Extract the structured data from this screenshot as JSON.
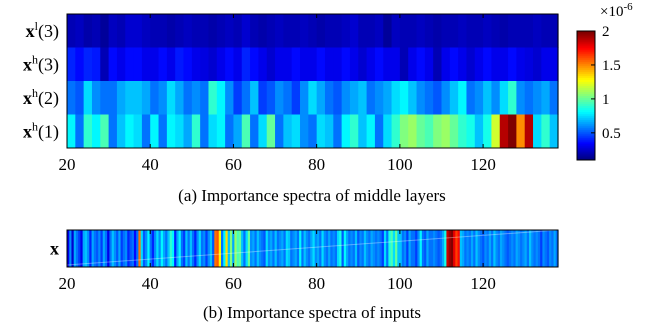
{
  "chart_data": [
    {
      "type": "heatmap",
      "caption": "(a)  Importance spectra of middle layers",
      "rows": [
        {
          "bold": "x",
          "sup": "l",
          "idx": "(3)"
        },
        {
          "bold": "x",
          "sup": "h",
          "idx": "(3)"
        },
        {
          "bold": "x",
          "sup": "h",
          "idx": "(2)"
        },
        {
          "bold": "x",
          "sup": "h",
          "idx": "(1)"
        }
      ],
      "xlim": [
        20,
        138
      ],
      "x_ticks": [
        "20",
        "40",
        "60",
        "80",
        "100",
        "120"
      ],
      "colorbar": {
        "range": [
          0.1,
          2
        ],
        "ticks": [
          "0.5",
          "1",
          "1.5",
          "2"
        ],
        "exponent_label": "×10",
        "exponent_sup": "-6",
        "colormap": "jet"
      },
      "values": [
        [
          0.2,
          0.22,
          0.18,
          0.2,
          0.15,
          0.22,
          0.2,
          0.25,
          0.25,
          0.22,
          0.2,
          0.2,
          0.18,
          0.2,
          0.22,
          0.2,
          0.2,
          0.18,
          0.2,
          0.22,
          0.2,
          0.25,
          0.2,
          0.18,
          0.2,
          0.22,
          0.2,
          0.2,
          0.22,
          0.2,
          0.18,
          0.2,
          0.2,
          0.22,
          0.25,
          0.2,
          0.2,
          0.22,
          0.15,
          0.22,
          0.2,
          0.2,
          0.22,
          0.2,
          0.18,
          0.2,
          0.2,
          0.22,
          0.2,
          0.2,
          0.22,
          0.2,
          0.18,
          0.2,
          0.2,
          0.2,
          0.22,
          0.2,
          0.2
        ],
        [
          0.4,
          0.35,
          0.4,
          0.38,
          0.2,
          0.35,
          0.3,
          0.35,
          0.35,
          0.3,
          0.3,
          0.35,
          0.3,
          0.38,
          0.35,
          0.3,
          0.28,
          0.25,
          0.3,
          0.35,
          0.3,
          0.4,
          0.35,
          0.3,
          0.25,
          0.3,
          0.3,
          0.35,
          0.3,
          0.3,
          0.35,
          0.3,
          0.3,
          0.35,
          0.3,
          0.25,
          0.3,
          0.35,
          0.3,
          0.3,
          0.2,
          0.3,
          0.35,
          0.3,
          0.2,
          0.3,
          0.35,
          0.3,
          0.25,
          0.3,
          0.35,
          0.3,
          0.3,
          0.35,
          0.3,
          0.28,
          0.25,
          0.3,
          0.3
        ],
        [
          0.55,
          0.5,
          0.75,
          0.6,
          0.55,
          0.55,
          0.65,
          0.7,
          0.7,
          0.65,
          0.55,
          0.6,
          0.75,
          0.65,
          0.55,
          0.6,
          0.55,
          0.9,
          0.8,
          0.6,
          0.45,
          0.55,
          0.7,
          0.45,
          0.5,
          0.6,
          0.55,
          0.45,
          0.6,
          0.75,
          0.65,
          0.55,
          0.5,
          0.6,
          0.65,
          0.7,
          0.55,
          0.6,
          0.65,
          0.75,
          0.8,
          0.7,
          0.6,
          0.55,
          0.5,
          0.6,
          0.7,
          0.8,
          0.55,
          0.6,
          0.7,
          0.6,
          0.75,
          0.9,
          0.6,
          0.55,
          0.6,
          0.65,
          0.55
        ],
        [
          0.8,
          0.55,
          0.9,
          0.8,
          0.95,
          0.55,
          0.7,
          0.8,
          0.75,
          0.55,
          0.8,
          0.55,
          0.8,
          0.75,
          0.65,
          0.9,
          0.55,
          0.75,
          0.8,
          0.55,
          0.65,
          0.95,
          0.55,
          0.75,
          1.0,
          0.55,
          0.7,
          0.75,
          0.6,
          0.55,
          0.75,
          0.7,
          0.55,
          0.8,
          0.9,
          0.7,
          0.8,
          0.55,
          0.75,
          0.9,
          1.05,
          1.1,
          1.0,
          0.95,
          1.05,
          1.1,
          1.0,
          0.9,
          0.85,
          0.7,
          0.85,
          1.2,
          1.9,
          2.0,
          1.5,
          1.9,
          0.75,
          0.9,
          0.7
        ]
      ]
    },
    {
      "type": "heatmap",
      "caption": "(b) Importance spectra of inputs",
      "rows": [
        {
          "bold": "x",
          "sup": "",
          "idx": ""
        }
      ],
      "xlim": [
        20,
        138
      ],
      "x_ticks": [
        "20",
        "40",
        "60",
        "80",
        "100",
        "120"
      ],
      "values": [
        [
          0.3,
          0.6,
          0.25,
          0.65,
          0.55,
          0.45,
          0.3,
          0.65,
          0.7,
          0.6,
          0.4,
          0.65,
          0.55,
          0.5,
          0.6,
          0.45,
          0.65,
          0.55,
          0.3,
          0.55,
          0.7,
          0.6,
          0.5,
          0.65,
          0.45,
          0.55,
          0.6,
          0.4,
          0.5,
          0.55,
          0.35,
          0.55,
          1.55,
          0.75,
          0.5,
          0.6,
          0.8,
          0.55,
          0.4,
          0.6,
          0.75,
          0.6,
          0.8,
          0.65,
          0.55,
          0.7,
          0.9,
          0.8,
          0.4,
          0.65,
          0.8,
          0.55,
          0.45,
          0.7,
          0.55,
          0.7,
          0.55,
          0.4,
          0.6,
          0.75,
          0.55,
          0.6,
          0.45,
          0.6,
          0.7,
          0.5,
          1.55,
          1.6,
          1.3,
          0.55,
          0.8,
          1.35,
          0.7,
          1.05,
          0.65,
          1.1,
          0.95,
          1.0,
          0.7,
          0.55,
          0.75,
          1.0,
          0.6,
          0.65,
          0.55,
          0.7,
          0.6,
          0.55,
          0.5,
          0.75,
          0.6,
          0.65,
          0.55,
          0.7,
          0.55,
          0.6,
          0.65,
          0.55,
          0.75,
          0.7,
          0.55,
          0.6,
          0.65,
          0.55,
          0.8,
          0.55,
          0.7,
          0.6,
          0.55,
          0.65,
          0.75,
          0.6,
          0.65,
          0.55,
          0.75,
          0.6,
          0.55,
          0.65,
          0.55,
          0.6,
          0.55,
          0.75,
          0.85,
          0.5,
          0.8,
          0.65,
          0.55,
          0.6,
          0.55,
          0.7,
          0.5,
          0.6,
          0.55,
          0.7,
          0.6,
          0.55,
          0.65,
          0.6,
          0.55,
          0.6,
          0.55,
          0.45,
          0.75,
          0.55,
          0.85,
          0.95,
          0.75,
          1.0,
          0.7,
          0.7,
          0.55,
          0.6,
          0.45,
          0.65,
          0.55,
          0.55,
          0.45,
          0.6,
          0.8,
          0.55,
          0.5,
          0.65,
          0.55,
          0.55,
          0.6,
          0.55,
          0.5,
          0.55,
          0.65,
          0.85,
          1.85,
          1.95,
          2.0,
          1.8,
          1.65,
          1.75,
          0.7,
          0.65,
          0.55,
          0.6,
          0.55,
          0.65,
          0.55,
          0.7,
          0.6,
          0.55,
          0.5,
          0.6,
          0.55,
          0.65,
          0.55,
          0.7,
          0.6,
          0.55,
          0.65,
          0.6,
          0.55,
          0.5,
          0.55,
          0.6,
          0.55,
          0.65,
          0.6,
          0.55,
          0.6,
          0.65,
          0.55,
          0.7,
          0.6,
          0.55,
          0.6,
          0.55,
          0.45,
          0.6,
          0.55,
          0.5,
          0.6,
          0.55,
          0.65,
          0.55
        ]
      ]
    }
  ]
}
